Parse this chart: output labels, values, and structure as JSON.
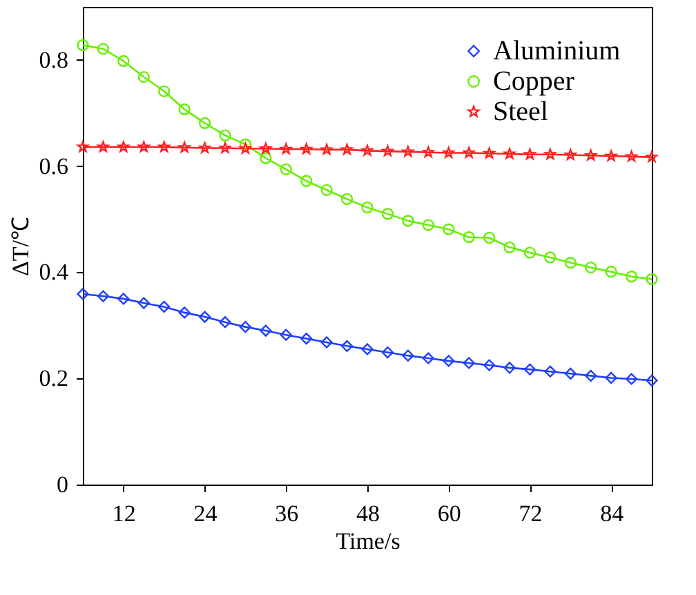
{
  "chart_data": {
    "type": "line",
    "xlabel": "Time/s",
    "ylabel": "ΔT/℃",
    "x": [
      6,
      9,
      12,
      15,
      18,
      21,
      24,
      27,
      30,
      33,
      36,
      39,
      42,
      45,
      48,
      51,
      54,
      57,
      60,
      63,
      66,
      69,
      72,
      75,
      78,
      81,
      84,
      87,
      90
    ],
    "xlim": [
      6,
      90
    ],
    "xticks": [
      12,
      24,
      36,
      48,
      60,
      72,
      84
    ],
    "ylim": [
      0,
      0.9
    ],
    "yticks": [
      0,
      0.2,
      0.4,
      0.6,
      0.8
    ],
    "grid": false,
    "legend": "top right",
    "line_style": "solid",
    "series": [
      {
        "name": "Aluminium",
        "color": "#1f3fff",
        "marker": "diamond",
        "values": [
          0.359,
          0.355,
          0.35,
          0.342,
          0.335,
          0.324,
          0.316,
          0.306,
          0.297,
          0.29,
          0.282,
          0.275,
          0.268,
          0.261,
          0.255,
          0.249,
          0.243,
          0.238,
          0.233,
          0.229,
          0.225,
          0.22,
          0.217,
          0.213,
          0.209,
          0.205,
          0.201,
          0.199,
          0.196
        ]
      },
      {
        "name": "Copper",
        "color": "#66ee00",
        "marker": "circle",
        "values": [
          0.828,
          0.821,
          0.798,
          0.768,
          0.741,
          0.707,
          0.681,
          0.658,
          0.641,
          0.615,
          0.594,
          0.572,
          0.555,
          0.538,
          0.522,
          0.51,
          0.497,
          0.489,
          0.481,
          0.466,
          0.465,
          0.447,
          0.437,
          0.428,
          0.418,
          0.409,
          0.401,
          0.392,
          0.387
        ]
      },
      {
        "name": "Steel",
        "color": "#ff2020",
        "marker": "star",
        "values": [
          0.636,
          0.636,
          0.636,
          0.636,
          0.636,
          0.635,
          0.634,
          0.634,
          0.633,
          0.633,
          0.632,
          0.632,
          0.631,
          0.631,
          0.629,
          0.628,
          0.627,
          0.626,
          0.625,
          0.625,
          0.624,
          0.623,
          0.622,
          0.622,
          0.621,
          0.62,
          0.619,
          0.618,
          0.617
        ]
      }
    ]
  }
}
